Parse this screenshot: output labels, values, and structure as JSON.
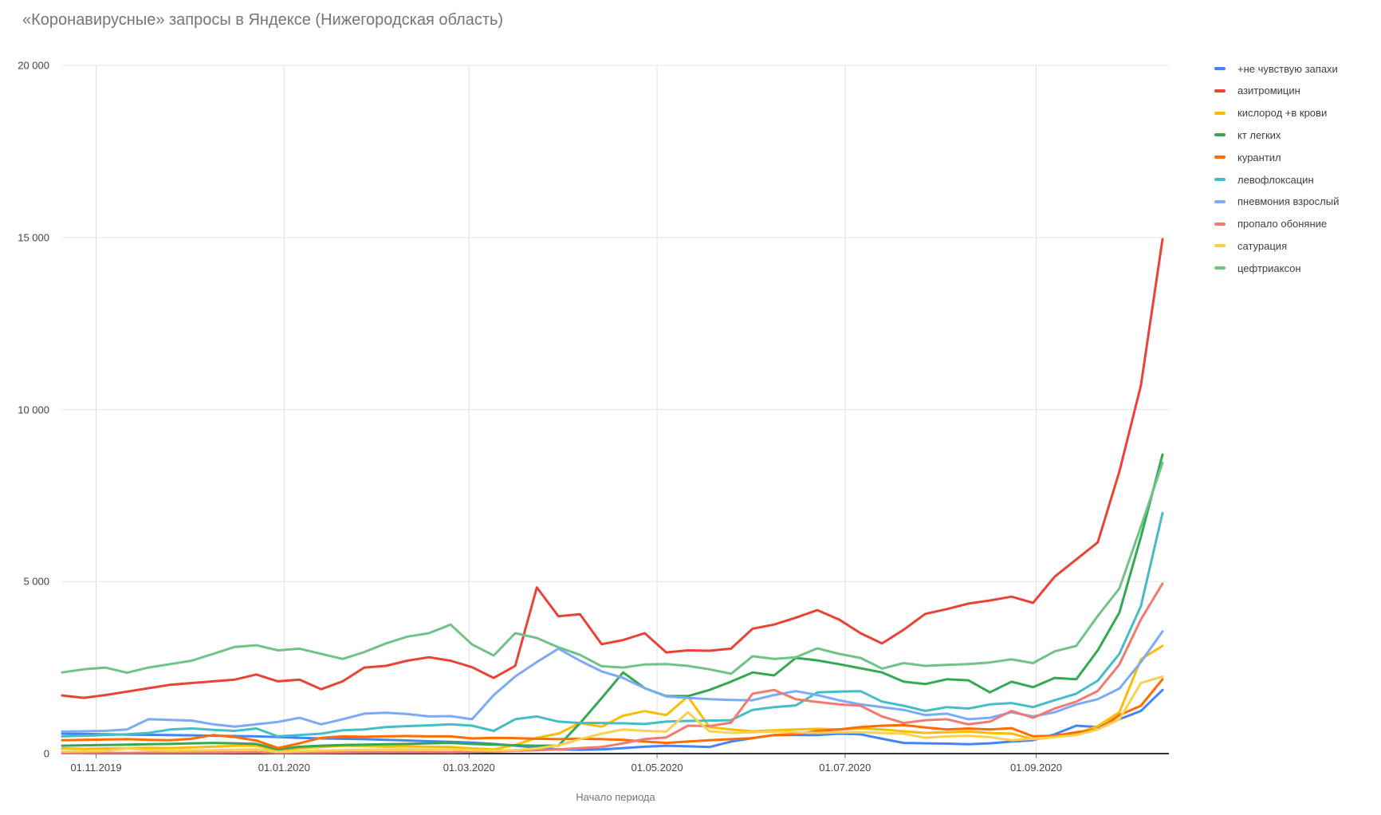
{
  "chart_data": {
    "type": "line",
    "title": "«Коронавирусные» запросы в Яндексе (Нижегородская область)",
    "x_axis_title": "Начало периода",
    "y_max": 20000,
    "y_ticks": [
      {
        "label": "0",
        "value": 0
      },
      {
        "label": "5 000",
        "value": 5000
      },
      {
        "label": "10 000",
        "value": 10000
      },
      {
        "label": "15 000",
        "value": 15000
      },
      {
        "label": "20 000",
        "value": 20000
      }
    ],
    "x_ticks": [
      {
        "label": "01.11.2019",
        "day": 11
      },
      {
        "label": "01.01.2020",
        "day": 72
      },
      {
        "label": "01.03.2020",
        "day": 132
      },
      {
        "label": "01.05.2020",
        "day": 193
      },
      {
        "label": "01.07.2020",
        "day": 254
      },
      {
        "label": "01.09.2020",
        "day": 316
      }
    ],
    "x_span_days": 357,
    "points_per_series": 52,
    "legend_position": "right",
    "grid": true,
    "series": [
      {
        "name": "+не чувствую запахи",
        "color": "#4285F4",
        "values": [
          580,
          570,
          560,
          550,
          545,
          540,
          530,
          520,
          510,
          500,
          480,
          460,
          440,
          430,
          420,
          400,
          380,
          360,
          340,
          320,
          280,
          230,
          180,
          120,
          110,
          120,
          160,
          200,
          230,
          210,
          190,
          350,
          450,
          540,
          540,
          540,
          580,
          560,
          430,
          310,
          300,
          290,
          270,
          300,
          350,
          390,
          560,
          810,
          770,
          1000,
          1240,
          1850
        ]
      },
      {
        "name": "азитромицин",
        "color": "#EA4335",
        "values": [
          1690,
          1620,
          1700,
          1800,
          1900,
          2000,
          2050,
          2100,
          2150,
          2300,
          2100,
          2150,
          1870,
          2100,
          2500,
          2550,
          2700,
          2800,
          2700,
          2510,
          2200,
          2550,
          4830,
          3990,
          4050,
          3180,
          3300,
          3500,
          2940,
          3000,
          2990,
          3050,
          3630,
          3750,
          3950,
          4170,
          3900,
          3500,
          3200,
          3600,
          4060,
          4200,
          4360,
          4450,
          4560,
          4380,
          5140,
          5640,
          6140,
          8200,
          10700,
          14950
        ]
      },
      {
        "name": "кислород +в крови",
        "color": "#FBBC04",
        "values": [
          150,
          140,
          150,
          160,
          170,
          160,
          180,
          200,
          230,
          230,
          80,
          150,
          190,
          230,
          220,
          200,
          210,
          200,
          190,
          150,
          120,
          250,
          460,
          580,
          890,
          780,
          1100,
          1235,
          1120,
          1660,
          770,
          700,
          650,
          680,
          700,
          720,
          700,
          730,
          700,
          650,
          600,
          620,
          640,
          600,
          580,
          420,
          480,
          580,
          800,
          1200,
          2740,
          3130
        ]
      },
      {
        "name": "кт легких",
        "color": "#34A853",
        "values": [
          230,
          240,
          250,
          260,
          270,
          280,
          300,
          310,
          300,
          280,
          120,
          200,
          230,
          250,
          260,
          270,
          280,
          300,
          310,
          280,
          260,
          240,
          230,
          230,
          880,
          1610,
          2360,
          1900,
          1670,
          1670,
          1850,
          2090,
          2360,
          2270,
          2780,
          2710,
          2600,
          2480,
          2360,
          2090,
          2020,
          2160,
          2130,
          1780,
          2090,
          1930,
          2200,
          2160,
          3000,
          4100,
          6300,
          8690
        ]
      },
      {
        "name": "курантил",
        "color": "#FF6D01",
        "values": [
          390,
          400,
          410,
          420,
          400,
          390,
          430,
          540,
          480,
          380,
          160,
          300,
          460,
          500,
          490,
          500,
          510,
          500,
          500,
          440,
          460,
          450,
          430,
          420,
          430,
          420,
          400,
          350,
          310,
          350,
          390,
          420,
          450,
          540,
          560,
          660,
          700,
          770,
          810,
          830,
          760,
          700,
          730,
          700,
          740,
          500,
          520,
          620,
          700,
          1120,
          1390,
          2160
        ]
      },
      {
        "name": "левофлоксацин",
        "color": "#46BDC6",
        "values": [
          500,
          520,
          540,
          560,
          600,
          700,
          730,
          690,
          660,
          730,
          500,
          540,
          580,
          680,
          700,
          770,
          800,
          820,
          850,
          810,
          660,
          1000,
          1080,
          930,
          890,
          890,
          880,
          860,
          930,
          950,
          960,
          970,
          1270,
          1350,
          1400,
          1780,
          1800,
          1815,
          1510,
          1390,
          1240,
          1350,
          1310,
          1430,
          1470,
          1350,
          1550,
          1740,
          2120,
          2900,
          4290,
          6990
        ]
      },
      {
        "name": "пневмония взрослый",
        "color": "#7BAAF7",
        "values": [
          640,
          650,
          660,
          700,
          1000,
          980,
          960,
          850,
          780,
          850,
          920,
          1040,
          850,
          1000,
          1160,
          1190,
          1150,
          1080,
          1090,
          1000,
          1700,
          2240,
          2660,
          3050,
          2700,
          2390,
          2200,
          1900,
          1660,
          1620,
          1580,
          1560,
          1550,
          1700,
          1815,
          1700,
          1550,
          1430,
          1350,
          1270,
          1120,
          1160,
          1000,
          1040,
          1200,
          1080,
          1200,
          1430,
          1580,
          1890,
          2660,
          3550
        ]
      },
      {
        "name": "пропало обоняние",
        "color": "#F07B72",
        "values": [
          15,
          15,
          20,
          20,
          25,
          25,
          30,
          30,
          35,
          40,
          20,
          25,
          30,
          35,
          40,
          40,
          45,
          45,
          40,
          50,
          60,
          80,
          100,
          120,
          160,
          190,
          300,
          424,
          470,
          810,
          800,
          900,
          1740,
          1850,
          1580,
          1500,
          1430,
          1390,
          1080,
          890,
          970,
          1000,
          850,
          930,
          1240,
          1040,
          1310,
          1510,
          1820,
          2590,
          3900,
          4940
        ]
      },
      {
        "name": "сатурация",
        "color": "#FCD04F",
        "values": [
          60,
          70,
          80,
          150,
          100,
          80,
          90,
          100,
          110,
          120,
          50,
          70,
          90,
          100,
          110,
          120,
          120,
          120,
          120,
          100,
          90,
          100,
          150,
          240,
          420,
          580,
          700,
          660,
          640,
          1200,
          650,
          600,
          620,
          640,
          620,
          600,
          620,
          620,
          600,
          580,
          460,
          500,
          520,
          480,
          390,
          430,
          480,
          540,
          700,
          1000,
          2050,
          2240
        ]
      },
      {
        "name": "цефтриаксон",
        "color": "#71C287",
        "values": [
          2360,
          2450,
          2500,
          2350,
          2500,
          2600,
          2700,
          2900,
          3100,
          3150,
          3000,
          3050,
          2900,
          2750,
          2950,
          3200,
          3400,
          3500,
          3750,
          3170,
          2850,
          3500,
          3360,
          3090,
          2870,
          2540,
          2500,
          2590,
          2600,
          2550,
          2450,
          2320,
          2830,
          2750,
          2800,
          3060,
          2900,
          2780,
          2470,
          2630,
          2550,
          2580,
          2600,
          2650,
          2740,
          2630,
          2970,
          3130,
          4000,
          4800,
          6600,
          8450
        ]
      }
    ]
  },
  "style": {
    "grid_color": "#e6e6e6",
    "vgrid_color": "#e0e0e0",
    "baseline_color": "#333333",
    "tick_color": "#757575"
  }
}
